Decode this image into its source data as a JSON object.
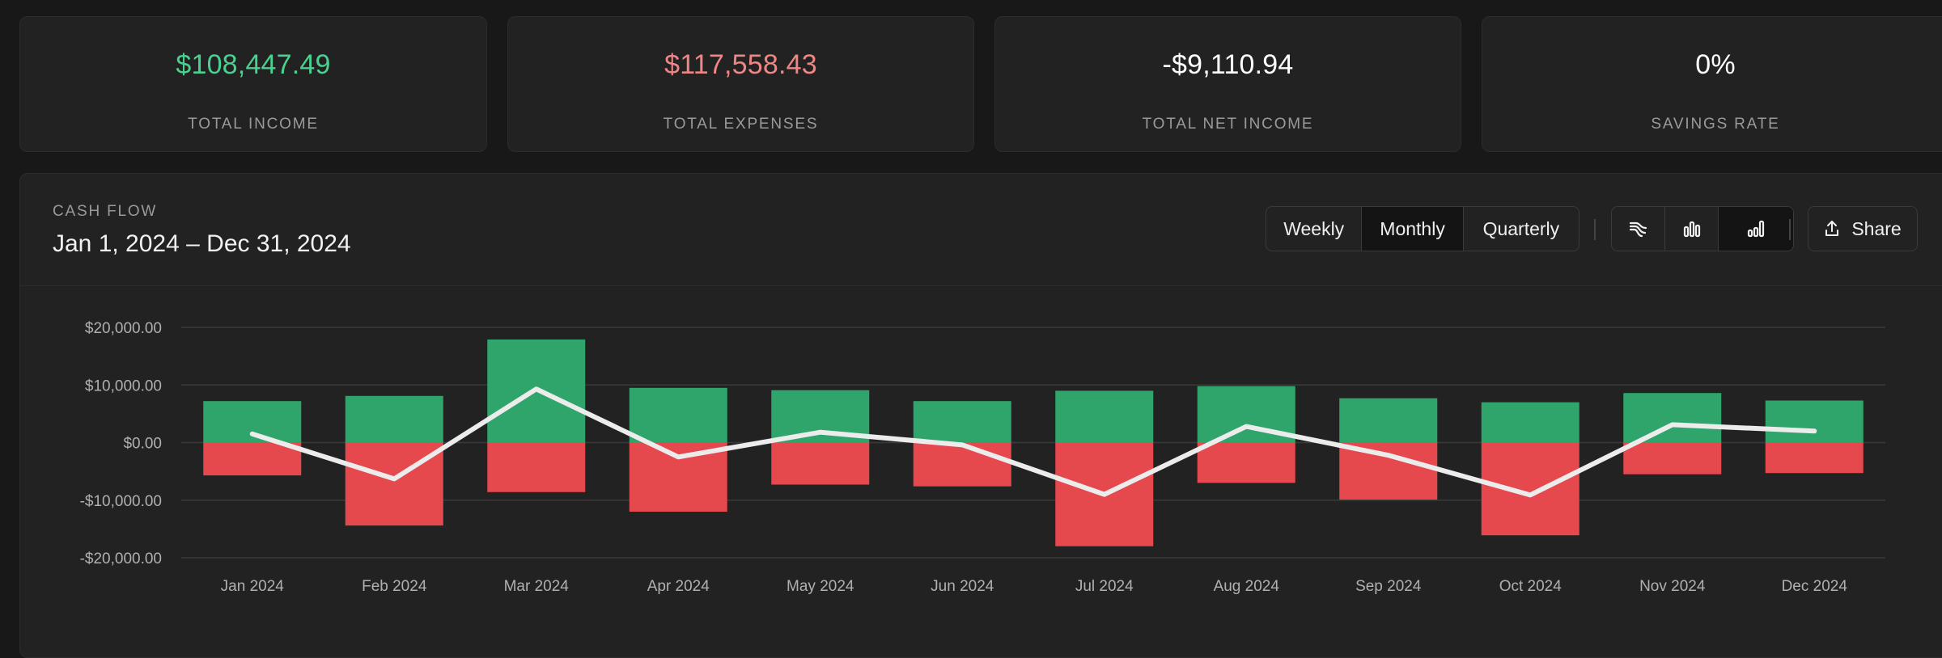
{
  "stats": [
    {
      "value": "$108,447.49",
      "label": "TOTAL INCOME",
      "color": "#4ad08f"
    },
    {
      "value": "$117,558.43",
      "label": "TOTAL EXPENSES",
      "color": "#f08585"
    },
    {
      "value": "-$9,110.94",
      "label": "TOTAL NET INCOME",
      "color": "#ffffff"
    },
    {
      "value": "0%",
      "label": "SAVINGS RATE",
      "color": "#ffffff"
    }
  ],
  "panel": {
    "kicker": "CASH FLOW",
    "date_range": "Jan 1, 2024 – Dec 31, 2024"
  },
  "period_toggle": {
    "options": [
      "Weekly",
      "Monthly",
      "Quarterly"
    ],
    "selected": "Monthly"
  },
  "view_toggle": {
    "options": [
      "sankey-icon",
      "bar-chart-icon",
      "bar-line-chart-icon"
    ],
    "selected": "bar-line-chart-icon"
  },
  "share": {
    "label": "Share",
    "icon": "share-icon"
  },
  "colors": {
    "income": "#2fa56c",
    "expense": "#e5484d",
    "net_line": "#ececec",
    "grid": "#3a3a3a",
    "background": "#181818",
    "card": "#222222"
  },
  "chart_data": {
    "type": "bar",
    "categories": [
      "Jan 2024",
      "Feb 2024",
      "Mar 2024",
      "Apr 2024",
      "May 2024",
      "Jun 2024",
      "Jul 2024",
      "Aug 2024",
      "Sep 2024",
      "Oct 2024",
      "Nov 2024",
      "Dec 2024"
    ],
    "series": [
      {
        "values": [
          7200,
          8100,
          17900,
          9500,
          9100,
          7200,
          9000,
          9800,
          7700,
          7000,
          8600,
          7300
        ]
      },
      {
        "values": [
          -5700,
          -14400,
          -8600,
          -12000,
          -7300,
          -7600,
          -18000,
          -7000,
          -9900,
          -16100,
          -5500,
          -5300
        ]
      },
      {
        "values": [
          1500,
          -6300,
          9300,
          -2500,
          1800,
          -400,
          -9000,
          2800,
          -2200,
          -9100,
          3100,
          2000
        ]
      }
    ],
    "y_ticks": [
      "$20,000.00",
      "$10,000.00",
      "$0.00",
      "-$10,000.00",
      "-$20,000.00"
    ],
    "ylim": [
      -20000,
      20000
    ],
    "grid": true
  }
}
